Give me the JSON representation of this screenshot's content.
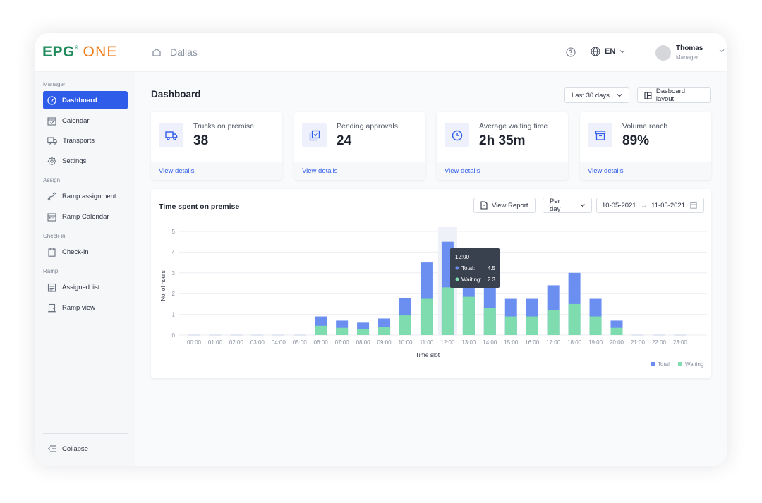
{
  "brand": {
    "part1": "EPG",
    "reg": "®",
    "part2": "ONE",
    "color1": "#1f8a5b",
    "color2": "#f07c18"
  },
  "header": {
    "location": "Dallas",
    "language": "EN",
    "user_name": "Thomas",
    "user_role": "Manager"
  },
  "sidebar": {
    "sections": [
      {
        "label": "Manager",
        "items": [
          {
            "label": "Dashboard",
            "icon": "dashboard-icon",
            "active": true
          },
          {
            "label": "Calendar",
            "icon": "calendar-icon"
          },
          {
            "label": "Transports",
            "icon": "truck-icon"
          },
          {
            "label": "Settings",
            "icon": "gear-icon"
          }
        ]
      },
      {
        "label": "Assign",
        "items": [
          {
            "label": "Ramp assignment",
            "icon": "route-icon"
          },
          {
            "label": "Ramp Calendar",
            "icon": "calendar-grid-icon"
          }
        ]
      },
      {
        "label": "Check-in",
        "items": [
          {
            "label": "Check-in",
            "icon": "clipboard-icon"
          }
        ]
      },
      {
        "label": "Ramp",
        "items": [
          {
            "label": "Assigned list",
            "icon": "list-icon"
          },
          {
            "label": "Ramp view",
            "icon": "door-icon"
          }
        ]
      }
    ],
    "collapse_label": "Collapse",
    "accent": "#2f5ce8"
  },
  "main": {
    "title": "Dashboard",
    "range_label": "Last 30 days",
    "layout_label": "Dasboard layout",
    "cards": [
      {
        "label": "Trucks on premise",
        "value": "38",
        "link": "View details",
        "icon": "truck-icon"
      },
      {
        "label": "Pending approvals",
        "value": "24",
        "link": "View details",
        "icon": "approval-icon"
      },
      {
        "label": "Average waiting time",
        "value": "2h 35m",
        "link": "View details",
        "icon": "clock-icon"
      },
      {
        "label": "Volume reach",
        "value": "89%",
        "link": "View details",
        "icon": "archive-icon"
      }
    ],
    "chart_card": {
      "title": "Time spent on premise",
      "view_report": "View Report",
      "period": "Per day",
      "date_from": "10-05-2021",
      "date_to": "11-05-2021",
      "date_arrow": "→"
    }
  },
  "chart_data": {
    "type": "bar",
    "stacked": "overlay",
    "categories": [
      "00:00",
      "01:00",
      "02:00",
      "03:00",
      "04:00",
      "05:00",
      "06:00",
      "07:00",
      "08:00",
      "09:00",
      "10:00",
      "11:00",
      "12:00",
      "13:00",
      "14:00",
      "15:00",
      "16:00",
      "17:00",
      "18:00",
      "19:00",
      "20:00",
      "21:00",
      "22:00",
      "23:00"
    ],
    "series": [
      {
        "name": "Total",
        "color": "#6b8ff0",
        "values": [
          0,
          0,
          0,
          0,
          0,
          0,
          0.9,
          0.7,
          0.6,
          0.8,
          1.8,
          3.5,
          4.5,
          2.8,
          2.5,
          1.75,
          1.75,
          2.4,
          3.0,
          1.75,
          0.7,
          0,
          0,
          0
        ]
      },
      {
        "name": "Waiting",
        "color": "#7fdcae",
        "values": [
          0,
          0,
          0,
          0,
          0,
          0,
          0.45,
          0.35,
          0.3,
          0.4,
          0.95,
          1.75,
          2.3,
          1.85,
          1.3,
          0.9,
          0.9,
          1.2,
          1.5,
          0.9,
          0.35,
          0,
          0,
          0
        ]
      }
    ],
    "xlabel": "Time slot",
    "ylabel": "No. of hours",
    "ylim": [
      0,
      5
    ],
    "yticks": [
      "0",
      "1",
      "2",
      "3",
      "4",
      "5"
    ],
    "grid": true,
    "legend": "bottom-right",
    "highlight_index": 12,
    "tooltip": {
      "title": "12:00",
      "rows": [
        {
          "label": "Total:",
          "value": "4.5"
        },
        {
          "label": "Waiting:",
          "value": "2.3"
        }
      ]
    }
  }
}
